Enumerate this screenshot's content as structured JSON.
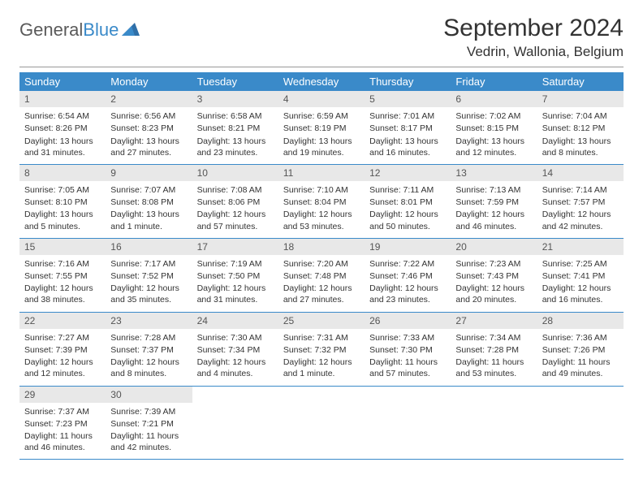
{
  "logo": {
    "part1": "General",
    "part2": "Blue"
  },
  "title": "September 2024",
  "location": "Vedrin, Wallonia, Belgium",
  "header_bg": "#3a8ac9",
  "daynum_bg": "#e8e8e8",
  "row_border": "#3a8ac9",
  "dows": [
    "Sunday",
    "Monday",
    "Tuesday",
    "Wednesday",
    "Thursday",
    "Friday",
    "Saturday"
  ],
  "weeks": [
    [
      {
        "n": "1",
        "sr": "Sunrise: 6:54 AM",
        "ss": "Sunset: 8:26 PM",
        "dl": "Daylight: 13 hours and 31 minutes."
      },
      {
        "n": "2",
        "sr": "Sunrise: 6:56 AM",
        "ss": "Sunset: 8:23 PM",
        "dl": "Daylight: 13 hours and 27 minutes."
      },
      {
        "n": "3",
        "sr": "Sunrise: 6:58 AM",
        "ss": "Sunset: 8:21 PM",
        "dl": "Daylight: 13 hours and 23 minutes."
      },
      {
        "n": "4",
        "sr": "Sunrise: 6:59 AM",
        "ss": "Sunset: 8:19 PM",
        "dl": "Daylight: 13 hours and 19 minutes."
      },
      {
        "n": "5",
        "sr": "Sunrise: 7:01 AM",
        "ss": "Sunset: 8:17 PM",
        "dl": "Daylight: 13 hours and 16 minutes."
      },
      {
        "n": "6",
        "sr": "Sunrise: 7:02 AM",
        "ss": "Sunset: 8:15 PM",
        "dl": "Daylight: 13 hours and 12 minutes."
      },
      {
        "n": "7",
        "sr": "Sunrise: 7:04 AM",
        "ss": "Sunset: 8:12 PM",
        "dl": "Daylight: 13 hours and 8 minutes."
      }
    ],
    [
      {
        "n": "8",
        "sr": "Sunrise: 7:05 AM",
        "ss": "Sunset: 8:10 PM",
        "dl": "Daylight: 13 hours and 5 minutes."
      },
      {
        "n": "9",
        "sr": "Sunrise: 7:07 AM",
        "ss": "Sunset: 8:08 PM",
        "dl": "Daylight: 13 hours and 1 minute."
      },
      {
        "n": "10",
        "sr": "Sunrise: 7:08 AM",
        "ss": "Sunset: 8:06 PM",
        "dl": "Daylight: 12 hours and 57 minutes."
      },
      {
        "n": "11",
        "sr": "Sunrise: 7:10 AM",
        "ss": "Sunset: 8:04 PM",
        "dl": "Daylight: 12 hours and 53 minutes."
      },
      {
        "n": "12",
        "sr": "Sunrise: 7:11 AM",
        "ss": "Sunset: 8:01 PM",
        "dl": "Daylight: 12 hours and 50 minutes."
      },
      {
        "n": "13",
        "sr": "Sunrise: 7:13 AM",
        "ss": "Sunset: 7:59 PM",
        "dl": "Daylight: 12 hours and 46 minutes."
      },
      {
        "n": "14",
        "sr": "Sunrise: 7:14 AM",
        "ss": "Sunset: 7:57 PM",
        "dl": "Daylight: 12 hours and 42 minutes."
      }
    ],
    [
      {
        "n": "15",
        "sr": "Sunrise: 7:16 AM",
        "ss": "Sunset: 7:55 PM",
        "dl": "Daylight: 12 hours and 38 minutes."
      },
      {
        "n": "16",
        "sr": "Sunrise: 7:17 AM",
        "ss": "Sunset: 7:52 PM",
        "dl": "Daylight: 12 hours and 35 minutes."
      },
      {
        "n": "17",
        "sr": "Sunrise: 7:19 AM",
        "ss": "Sunset: 7:50 PM",
        "dl": "Daylight: 12 hours and 31 minutes."
      },
      {
        "n": "18",
        "sr": "Sunrise: 7:20 AM",
        "ss": "Sunset: 7:48 PM",
        "dl": "Daylight: 12 hours and 27 minutes."
      },
      {
        "n": "19",
        "sr": "Sunrise: 7:22 AM",
        "ss": "Sunset: 7:46 PM",
        "dl": "Daylight: 12 hours and 23 minutes."
      },
      {
        "n": "20",
        "sr": "Sunrise: 7:23 AM",
        "ss": "Sunset: 7:43 PM",
        "dl": "Daylight: 12 hours and 20 minutes."
      },
      {
        "n": "21",
        "sr": "Sunrise: 7:25 AM",
        "ss": "Sunset: 7:41 PM",
        "dl": "Daylight: 12 hours and 16 minutes."
      }
    ],
    [
      {
        "n": "22",
        "sr": "Sunrise: 7:27 AM",
        "ss": "Sunset: 7:39 PM",
        "dl": "Daylight: 12 hours and 12 minutes."
      },
      {
        "n": "23",
        "sr": "Sunrise: 7:28 AM",
        "ss": "Sunset: 7:37 PM",
        "dl": "Daylight: 12 hours and 8 minutes."
      },
      {
        "n": "24",
        "sr": "Sunrise: 7:30 AM",
        "ss": "Sunset: 7:34 PM",
        "dl": "Daylight: 12 hours and 4 minutes."
      },
      {
        "n": "25",
        "sr": "Sunrise: 7:31 AM",
        "ss": "Sunset: 7:32 PM",
        "dl": "Daylight: 12 hours and 1 minute."
      },
      {
        "n": "26",
        "sr": "Sunrise: 7:33 AM",
        "ss": "Sunset: 7:30 PM",
        "dl": "Daylight: 11 hours and 57 minutes."
      },
      {
        "n": "27",
        "sr": "Sunrise: 7:34 AM",
        "ss": "Sunset: 7:28 PM",
        "dl": "Daylight: 11 hours and 53 minutes."
      },
      {
        "n": "28",
        "sr": "Sunrise: 7:36 AM",
        "ss": "Sunset: 7:26 PM",
        "dl": "Daylight: 11 hours and 49 minutes."
      }
    ],
    [
      {
        "n": "29",
        "sr": "Sunrise: 7:37 AM",
        "ss": "Sunset: 7:23 PM",
        "dl": "Daylight: 11 hours and 46 minutes."
      },
      {
        "n": "30",
        "sr": "Sunrise: 7:39 AM",
        "ss": "Sunset: 7:21 PM",
        "dl": "Daylight: 11 hours and 42 minutes."
      },
      null,
      null,
      null,
      null,
      null
    ]
  ]
}
